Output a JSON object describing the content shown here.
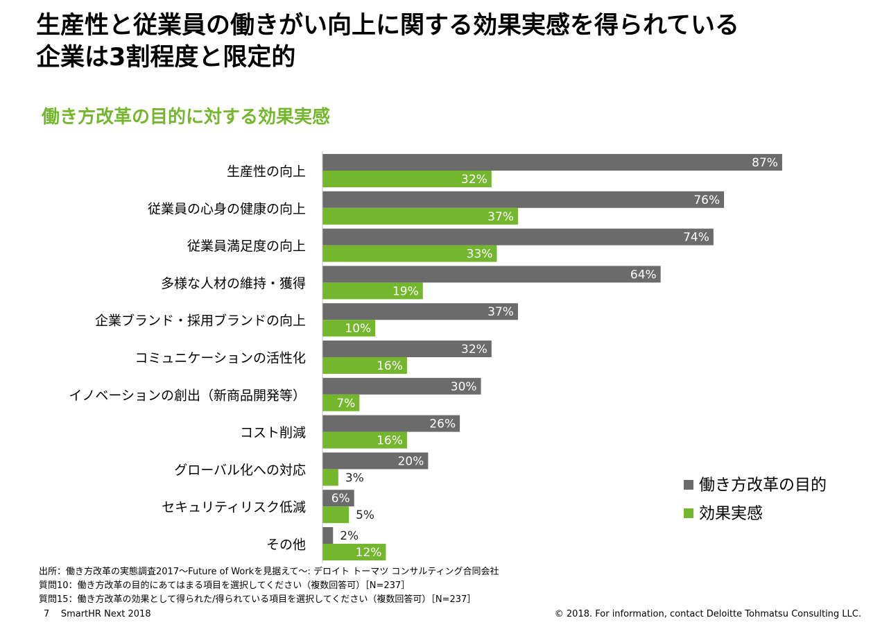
{
  "title": {
    "line1": "生産性と従業員の働きがい向上に関する効果実感を得られている",
    "line2": "企業は3割程度と限定的"
  },
  "subtitle": "働き方改革の目的に対する効果実感",
  "chart_data": {
    "type": "bar",
    "orientation": "horizontal",
    "title": "働き方改革の目的に対する効果実感",
    "categories": [
      "生産性の向上",
      "従業員の心身の健康の向上",
      "従業員満足度の向上",
      "多様な人材の維持・獲得",
      "企業ブランド・採用ブランドの向上",
      "コミュニケーションの活性化",
      "イノベーションの創出（新商品開発等）",
      "コスト削減",
      "グローバル化への対応",
      "セキュリティリスク低減",
      "その他"
    ],
    "series": [
      {
        "name": "働き方改革の目的",
        "color": "#6b6b6b",
        "values": [
          87,
          76,
          74,
          64,
          37,
          32,
          30,
          26,
          20,
          6,
          2
        ],
        "labels": [
          "87%",
          "76%",
          "74%",
          "64%",
          "37%",
          "32%",
          "30%",
          "26%",
          "20%",
          "6%",
          "2%"
        ]
      },
      {
        "name": "効果実感",
        "color": "#74b72e",
        "values": [
          32,
          37,
          33,
          19,
          10,
          16,
          7,
          16,
          3,
          5,
          12
        ],
        "labels": [
          "32%",
          "37%",
          "33%",
          "19%",
          "10%",
          "16%",
          "7%",
          "16%",
          "3%",
          "5%",
          "12%"
        ]
      }
    ],
    "xlim": [
      0,
      100
    ],
    "legend": "right"
  },
  "footer": {
    "source1": "出所：働き方改革の実態調査2017～Future of Workを見据えて～: デロイト トーマツ コンサルティング合同会社",
    "source2": "質問10：働き方改革の目的にあてはまる項目を選択してください（複数回答可）［N=237］",
    "source3": "質問15：働き方改革の効果として得られた/得られている項目を選択してください（複数回答可）［N=237］",
    "page_number": "7",
    "event": "SmartHR Next 2018",
    "copyright": "© 2018. For information, contact Deloitte Tohmatsu Consulting LLC."
  }
}
